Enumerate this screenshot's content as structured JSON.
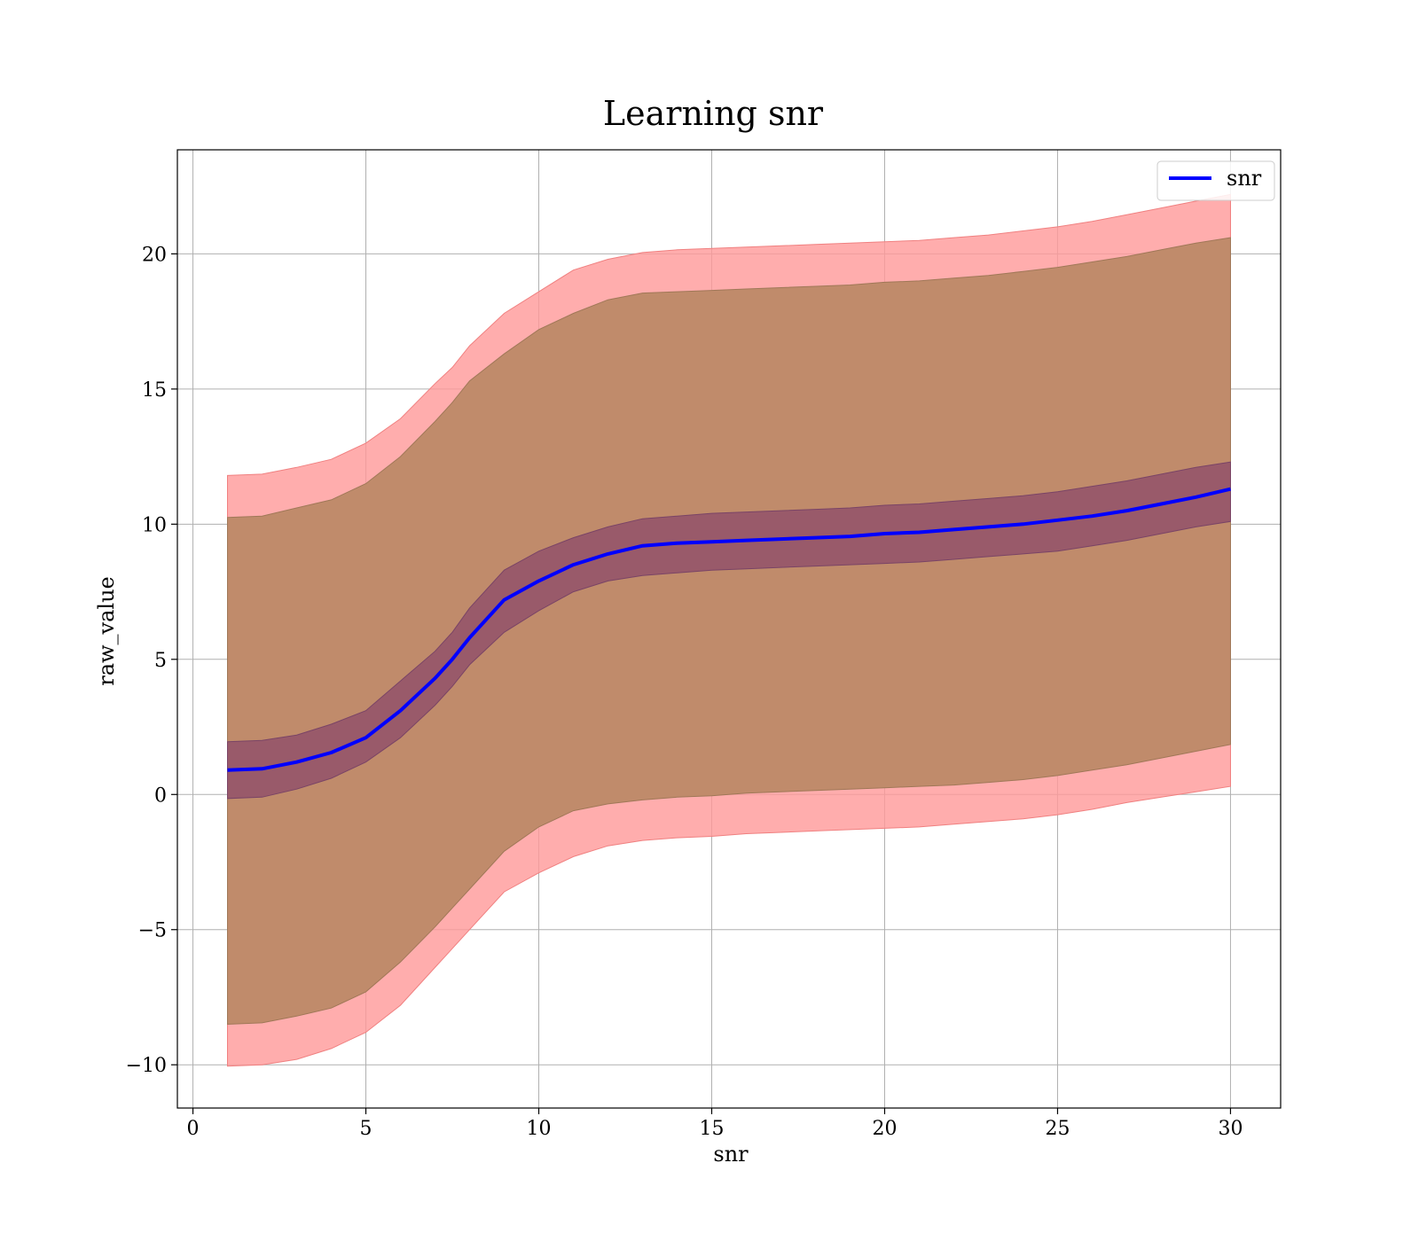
{
  "chart_data": {
    "type": "line",
    "title": "Learning snr",
    "xlabel": "snr",
    "ylabel": "raw_value",
    "xlim": [
      -0.45,
      31.45
    ],
    "ylim": [
      -11.6,
      23.85
    ],
    "xticks": [
      0,
      5,
      10,
      15,
      20,
      25,
      30
    ],
    "yticks": [
      -10,
      -5,
      0,
      5,
      10,
      15,
      20
    ],
    "grid": true,
    "legend": {
      "placement": "top-right",
      "entries": [
        "snr"
      ]
    },
    "colors": {
      "line": "#0000ff",
      "outer_band": "#ff9999",
      "middle_band": "#c08b6b",
      "inner_band": "#8c4a6a",
      "axes": "#000000",
      "grid": "#b0b0b0"
    },
    "series": [
      {
        "name": "snr",
        "x": [
          1,
          2,
          3,
          4,
          5,
          6,
          7,
          7.5,
          8,
          9,
          10,
          11,
          12,
          13,
          14,
          15,
          16,
          17,
          18,
          19,
          20,
          21,
          22,
          23,
          24,
          25,
          26,
          27,
          28,
          29,
          30
        ],
        "mean": [
          0.9,
          0.95,
          1.2,
          1.55,
          2.1,
          3.1,
          4.3,
          5.0,
          5.8,
          7.2,
          7.9,
          8.5,
          8.9,
          9.2,
          9.3,
          9.35,
          9.4,
          9.45,
          9.5,
          9.55,
          9.65,
          9.7,
          9.8,
          9.9,
          10.0,
          10.15,
          10.3,
          10.5,
          10.75,
          11.0,
          11.3
        ],
        "inner_lower": [
          -0.15,
          -0.1,
          0.2,
          0.6,
          1.2,
          2.1,
          3.3,
          4.0,
          4.8,
          6.0,
          6.8,
          7.5,
          7.9,
          8.1,
          8.2,
          8.3,
          8.35,
          8.4,
          8.45,
          8.5,
          8.55,
          8.6,
          8.7,
          8.8,
          8.9,
          9.0,
          9.2,
          9.4,
          9.65,
          9.9,
          10.1
        ],
        "inner_upper": [
          1.95,
          2.0,
          2.2,
          2.6,
          3.1,
          4.2,
          5.3,
          6.0,
          6.9,
          8.3,
          9.0,
          9.5,
          9.9,
          10.2,
          10.3,
          10.4,
          10.45,
          10.5,
          10.55,
          10.6,
          10.7,
          10.75,
          10.85,
          10.95,
          11.05,
          11.2,
          11.4,
          11.6,
          11.85,
          12.1,
          12.3
        ],
        "middle_lower": [
          -8.5,
          -8.45,
          -8.2,
          -7.9,
          -7.3,
          -6.2,
          -4.9,
          -4.2,
          -3.5,
          -2.1,
          -1.2,
          -0.6,
          -0.35,
          -0.2,
          -0.1,
          -0.05,
          0.05,
          0.1,
          0.15,
          0.2,
          0.25,
          0.3,
          0.35,
          0.45,
          0.55,
          0.7,
          0.9,
          1.1,
          1.35,
          1.6,
          1.85
        ],
        "middle_upper": [
          10.25,
          10.3,
          10.6,
          10.9,
          11.5,
          12.5,
          13.8,
          14.5,
          15.3,
          16.3,
          17.2,
          17.8,
          18.3,
          18.55,
          18.6,
          18.65,
          18.7,
          18.75,
          18.8,
          18.85,
          18.95,
          19.0,
          19.1,
          19.2,
          19.35,
          19.5,
          19.7,
          19.9,
          20.15,
          20.4,
          20.6
        ],
        "outer_lower": [
          -10.05,
          -10.0,
          -9.8,
          -9.4,
          -8.8,
          -7.8,
          -6.4,
          -5.7,
          -5.0,
          -3.6,
          -2.9,
          -2.3,
          -1.9,
          -1.7,
          -1.6,
          -1.55,
          -1.45,
          -1.4,
          -1.35,
          -1.3,
          -1.25,
          -1.2,
          -1.1,
          -1.0,
          -0.9,
          -0.75,
          -0.55,
          -0.3,
          -0.1,
          0.1,
          0.3
        ],
        "outer_upper": [
          11.8,
          11.85,
          12.1,
          12.4,
          13.0,
          13.9,
          15.2,
          15.8,
          16.6,
          17.8,
          18.6,
          19.4,
          19.8,
          20.05,
          20.15,
          20.2,
          20.25,
          20.3,
          20.35,
          20.4,
          20.45,
          20.5,
          20.6,
          20.7,
          20.85,
          21.0,
          21.2,
          21.45,
          21.7,
          21.95,
          22.2
        ]
      }
    ]
  }
}
